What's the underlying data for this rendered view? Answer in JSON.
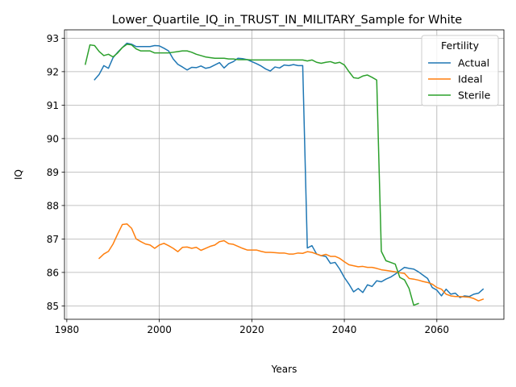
{
  "chart_data": {
    "type": "line",
    "title": "Lower_Quartile_IQ_in_TRUST_IN_MILITARY_Sample for White",
    "xlabel": "Years",
    "ylabel": "IQ",
    "xlim": [
      1979.5,
      2074.5
    ],
    "ylim": [
      84.6,
      93.25
    ],
    "xticks": [
      1980,
      2000,
      2020,
      2040,
      2060
    ],
    "yticks": [
      85,
      86,
      87,
      88,
      89,
      90,
      91,
      92,
      93
    ],
    "grid": true,
    "legend": {
      "title": "Fertility",
      "placement": "upper-right"
    },
    "series": [
      {
        "name": "Actual",
        "color": "#1f77b4",
        "x": [
          1986,
          1987,
          1988,
          1989,
          1990,
          1991,
          1992,
          1993,
          1994,
          1995,
          1996,
          1997,
          1998,
          1999,
          2000,
          2001,
          2002,
          2003,
          2004,
          2005,
          2006,
          2007,
          2008,
          2009,
          2010,
          2011,
          2012,
          2013,
          2014,
          2015,
          2016,
          2017,
          2018,
          2019,
          2020,
          2021,
          2022,
          2023,
          2024,
          2025,
          2026,
          2027,
          2028,
          2029,
          2030,
          2031,
          2032,
          2033,
          2034,
          2035,
          2036,
          2037,
          2038,
          2039,
          2040,
          2041,
          2042,
          2043,
          2044,
          2045,
          2046,
          2047,
          2048,
          2049,
          2050,
          2051,
          2052,
          2053,
          2054,
          2055,
          2056,
          2057,
          2058,
          2059,
          2060,
          2061,
          2062,
          2063,
          2064,
          2065,
          2066,
          2067,
          2068,
          2069,
          2070
        ],
        "y": [
          91.76,
          91.92,
          92.18,
          92.1,
          92.42,
          92.58,
          92.72,
          92.85,
          92.82,
          92.75,
          92.75,
          92.75,
          92.75,
          92.78,
          92.77,
          92.7,
          92.62,
          92.38,
          92.22,
          92.14,
          92.05,
          92.13,
          92.12,
          92.17,
          92.1,
          92.13,
          92.2,
          92.27,
          92.11,
          92.24,
          92.3,
          92.4,
          92.39,
          92.36,
          92.3,
          92.24,
          92.17,
          92.08,
          92.02,
          92.14,
          92.11,
          92.2,
          92.18,
          92.21,
          92.18,
          92.18,
          86.73,
          86.8,
          86.55,
          86.5,
          86.48,
          86.27,
          86.3,
          86.1,
          85.85,
          85.65,
          85.42,
          85.52,
          85.4,
          85.63,
          85.58,
          85.75,
          85.72,
          85.8,
          85.86,
          85.95,
          86.05,
          86.15,
          86.12,
          86.1,
          86.02,
          85.92,
          85.82,
          85.55,
          85.47,
          85.3,
          85.5,
          85.35,
          85.38,
          85.25,
          85.3,
          85.28,
          85.35,
          85.38,
          85.5
        ]
      },
      {
        "name": "Ideal",
        "color": "#ff7f0e",
        "x": [
          1987,
          1988,
          1989,
          1990,
          1991,
          1992,
          1993,
          1994,
          1995,
          1996,
          1997,
          1998,
          1999,
          2000,
          2001,
          2002,
          2003,
          2004,
          2005,
          2006,
          2007,
          2008,
          2009,
          2010,
          2011,
          2012,
          2013,
          2014,
          2015,
          2016,
          2017,
          2018,
          2019,
          2020,
          2021,
          2022,
          2023,
          2024,
          2025,
          2026,
          2027,
          2028,
          2029,
          2030,
          2031,
          2032,
          2033,
          2034,
          2035,
          2036,
          2037,
          2038,
          2039,
          2040,
          2041,
          2042,
          2043,
          2044,
          2045,
          2046,
          2047,
          2048,
          2049,
          2050,
          2051,
          2052,
          2053,
          2054,
          2055,
          2056,
          2057,
          2058,
          2059,
          2060,
          2061,
          2062,
          2063,
          2064,
          2065,
          2066,
          2067,
          2068,
          2069,
          2070
        ],
        "y": [
          86.42,
          86.55,
          86.63,
          86.85,
          87.15,
          87.43,
          87.45,
          87.32,
          87.0,
          86.92,
          86.85,
          86.82,
          86.72,
          86.82,
          86.87,
          86.8,
          86.72,
          86.62,
          86.75,
          86.76,
          86.72,
          86.75,
          86.66,
          86.72,
          86.78,
          86.82,
          86.92,
          86.95,
          86.86,
          86.84,
          86.78,
          86.72,
          86.67,
          86.67,
          86.67,
          86.63,
          86.6,
          86.6,
          86.59,
          86.58,
          86.58,
          86.55,
          86.55,
          86.58,
          86.57,
          86.62,
          86.6,
          86.55,
          86.5,
          86.54,
          86.48,
          86.48,
          86.42,
          86.32,
          86.23,
          86.2,
          86.17,
          86.18,
          86.15,
          86.15,
          86.12,
          86.08,
          86.06,
          86.04,
          86.02,
          85.99,
          85.97,
          85.82,
          85.8,
          85.77,
          85.73,
          85.7,
          85.65,
          85.55,
          85.5,
          85.35,
          85.3,
          85.28,
          85.28,
          85.27,
          85.26,
          85.22,
          85.15,
          85.2
        ]
      },
      {
        "name": "Sterile",
        "color": "#2ca02c",
        "x": [
          1984,
          1985,
          1986,
          1987,
          1988,
          1989,
          1990,
          1991,
          1992,
          1993,
          1994,
          1995,
          1996,
          1997,
          1998,
          1999,
          2000,
          2001,
          2002,
          2003,
          2004,
          2005,
          2006,
          2007,
          2008,
          2009,
          2010,
          2011,
          2012,
          2013,
          2014,
          2015,
          2016,
          2017,
          2018,
          2019,
          2020,
          2021,
          2022,
          2023,
          2024,
          2025,
          2026,
          2027,
          2028,
          2029,
          2030,
          2031,
          2032,
          2033,
          2034,
          2035,
          2036,
          2037,
          2038,
          2039,
          2040,
          2041,
          2042,
          2043,
          2044,
          2045,
          2046,
          2047,
          2048,
          2049,
          2050,
          2051,
          2052,
          2053,
          2054,
          2055,
          2056
        ],
        "y": [
          92.22,
          92.8,
          92.78,
          92.6,
          92.48,
          92.52,
          92.44,
          92.56,
          92.72,
          92.82,
          92.8,
          92.68,
          92.62,
          92.62,
          92.62,
          92.56,
          92.56,
          92.56,
          92.56,
          92.58,
          92.6,
          92.62,
          92.62,
          92.58,
          92.52,
          92.48,
          92.44,
          92.42,
          92.4,
          92.4,
          92.4,
          92.38,
          92.38,
          92.36,
          92.36,
          92.36,
          92.35,
          92.35,
          92.35,
          92.35,
          92.35,
          92.35,
          92.35,
          92.35,
          92.35,
          92.35,
          92.35,
          92.35,
          92.32,
          92.35,
          92.28,
          92.25,
          92.28,
          92.3,
          92.25,
          92.28,
          92.2,
          92.0,
          91.82,
          91.8,
          91.87,
          91.9,
          91.83,
          91.75,
          86.63,
          86.35,
          86.3,
          86.25,
          85.85,
          85.78,
          85.52,
          85.02,
          85.07
        ]
      }
    ]
  }
}
